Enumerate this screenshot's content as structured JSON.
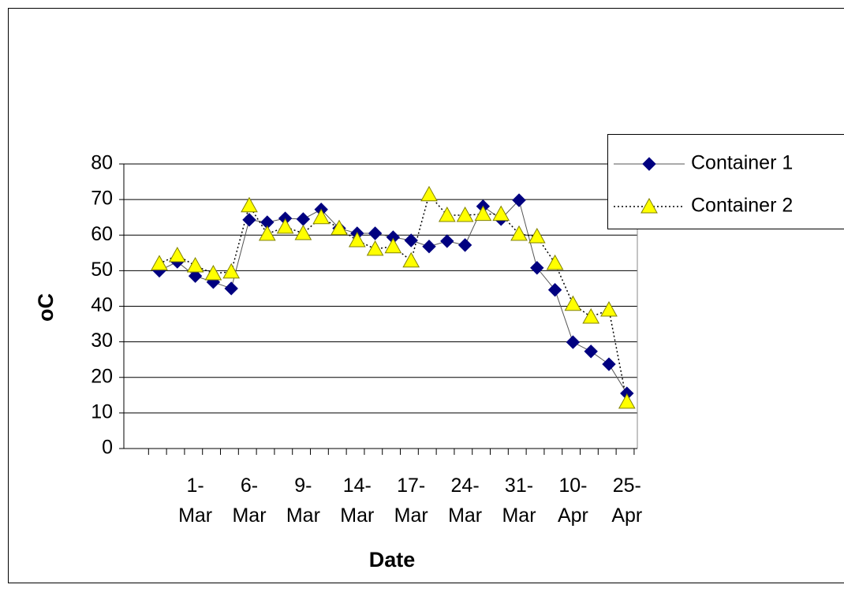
{
  "chart_data": {
    "type": "line",
    "x_label": "Date",
    "y_label": "oC",
    "categories": [
      null,
      null,
      "1-Mar",
      null,
      null,
      "6-Mar",
      null,
      null,
      "9-Mar",
      null,
      null,
      "14-Mar",
      null,
      null,
      "17-Mar",
      null,
      null,
      "24-Mar",
      null,
      null,
      "31-Mar",
      null,
      null,
      "10-Apr",
      null,
      null,
      "25-Apr"
    ],
    "series": [
      {
        "name": "Container 1",
        "color": "#000080",
        "marker": "diamond",
        "line": "solid",
        "values": [
          50,
          52.5,
          48.5,
          46.8,
          45,
          64.3,
          63.6,
          64.7,
          64.5,
          67.2,
          61.9,
          60.5,
          60.5,
          59.4,
          58.5,
          56.8,
          58.3,
          57.2,
          68.1,
          64.5,
          69.8,
          50.8,
          44.6,
          29.9,
          27.3,
          23.7,
          15.5
        ]
      },
      {
        "name": "Container 2",
        "color": "#ffff00",
        "marker": "triangle",
        "line": "dotted",
        "values": [
          52,
          54.3,
          51.4,
          49.2,
          49.7,
          68.3,
          60.3,
          62.3,
          60.5,
          65,
          61.9,
          58.5,
          56.1,
          56.8,
          52.8,
          71.4,
          65.6,
          65.6,
          65.9,
          65.9,
          60.3,
          59.6,
          52.1,
          40.6,
          37,
          39,
          13.1
        ]
      }
    ],
    "ylim": [
      0,
      80
    ],
    "yticks": [
      0,
      10,
      20,
      30,
      40,
      50,
      60,
      70,
      80
    ],
    "grid": true,
    "legend": "right"
  }
}
